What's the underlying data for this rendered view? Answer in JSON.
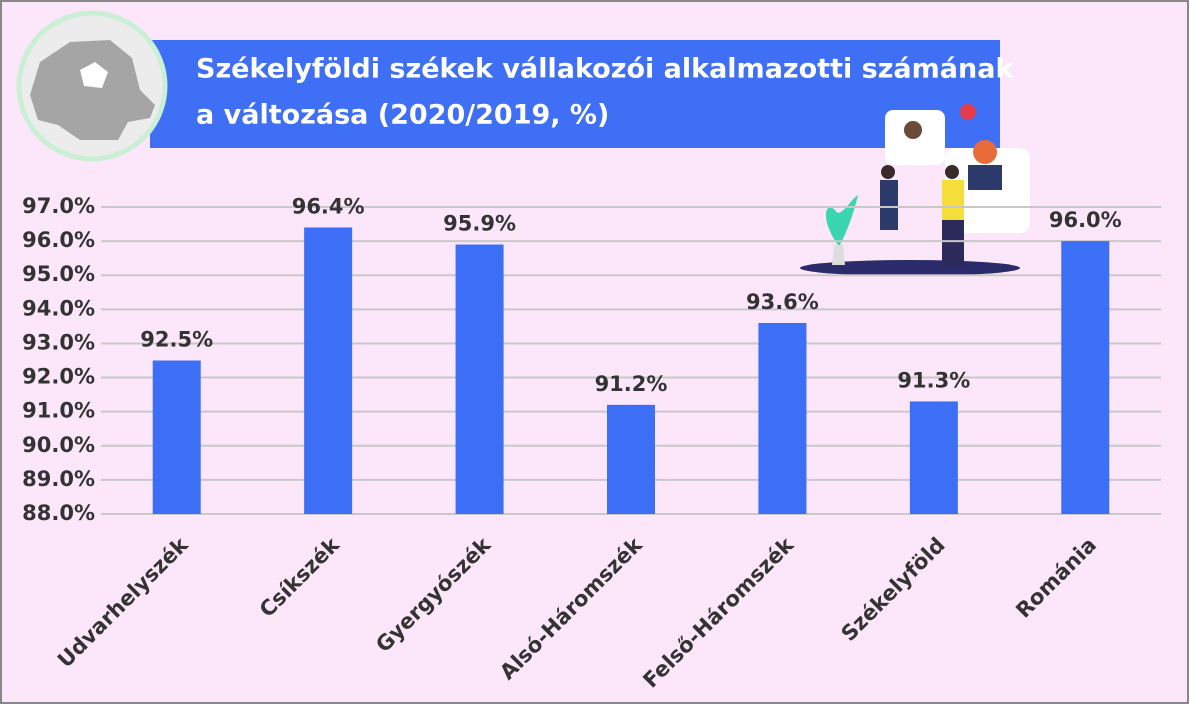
{
  "chart_data": {
    "type": "bar",
    "title": [
      "Székelyföldi székek vállakozói alkalmazotti számának",
      "a változása (2020/2019, %)"
    ],
    "categories": [
      "Udvarhelyszék",
      "Csíkszék",
      "Gyergyószék",
      "Alsó-Háromszék",
      "Felső-Háromszék",
      "Székelyföld",
      "Románia"
    ],
    "values": [
      92.5,
      96.4,
      95.9,
      91.2,
      93.6,
      91.3,
      96.0
    ],
    "value_labels": [
      "92.5%",
      "96.4%",
      "95.9%",
      "91.2%",
      "93.6%",
      "91.3%",
      "96.0%"
    ],
    "color": "#3d6ef6",
    "ylim": [
      88,
      97
    ],
    "yticks": [
      {
        "value": 88,
        "label": "88.0%"
      },
      {
        "value": 89,
        "label": "89.0%"
      },
      {
        "value": 90,
        "label": "90.0%"
      },
      {
        "value": 91,
        "label": "91.0%"
      },
      {
        "value": 92,
        "label": "92.0%"
      },
      {
        "value": 93,
        "label": "93.0%"
      },
      {
        "value": 94,
        "label": "94.0%"
      },
      {
        "value": 95,
        "label": "95.0%"
      },
      {
        "value": 96,
        "label": "96.0%"
      },
      {
        "value": 97,
        "label": "97.0%"
      }
    ],
    "grid": true
  }
}
